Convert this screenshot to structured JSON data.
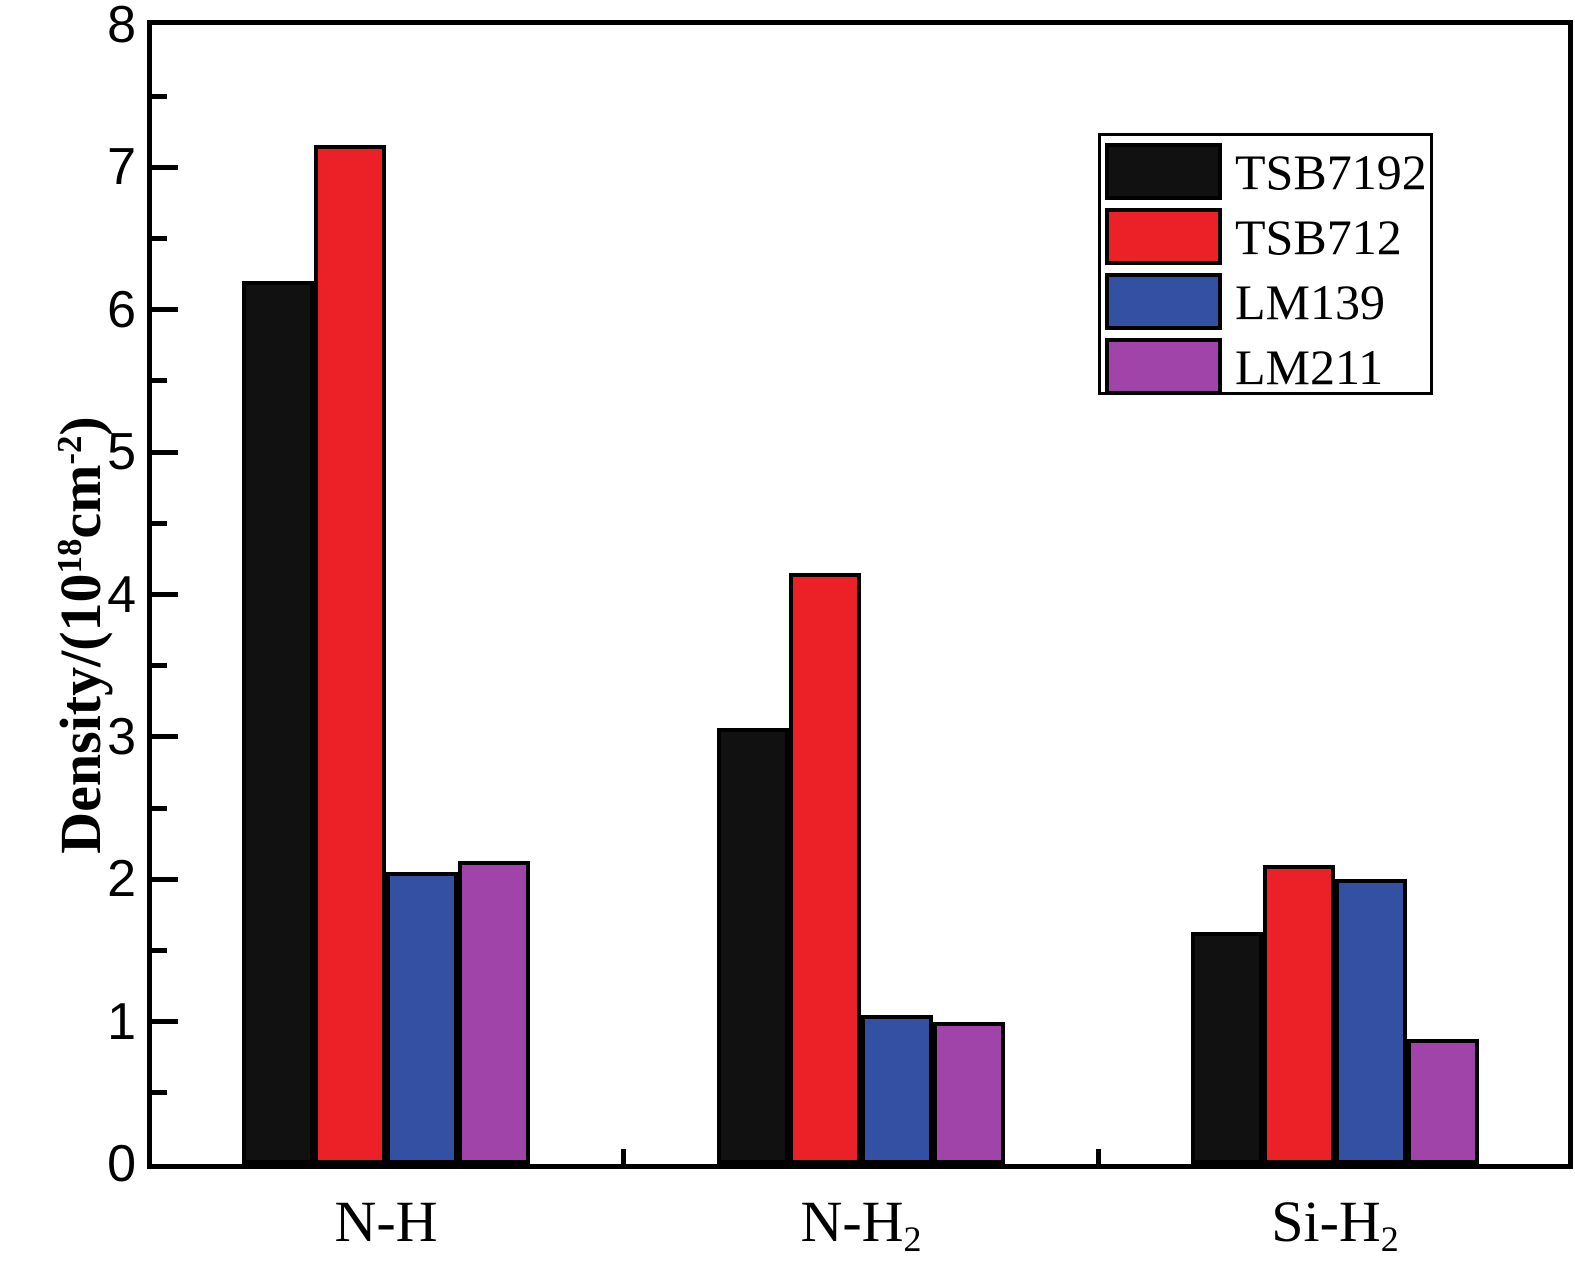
{
  "figure": {
    "background": "#ffffff",
    "frame_color": "#000000"
  },
  "y_axis": {
    "title_parts": {
      "prefix": "Density/(10",
      "sup1": "18",
      "mid": "cm",
      "sup2": "-2",
      "suffix": ")"
    },
    "tick_labels": [
      "0",
      "1",
      "2",
      "3",
      "4",
      "5",
      "6",
      "7",
      "8"
    ]
  },
  "chart_data": {
    "type": "bar",
    "title": "",
    "xlabel": "",
    "ylabel": "Density/(10^18 cm^-2)",
    "ylim": [
      0,
      8
    ],
    "ytick_step": 1,
    "minor_ytick_step": 0.5,
    "grid": false,
    "legend_position": "top-right",
    "categories": [
      "N-H",
      "N-H2",
      "Si-H2"
    ],
    "categories_rich": [
      {
        "base": "N-H",
        "sub": ""
      },
      {
        "base": "N-H",
        "sub": "2"
      },
      {
        "base": "Si-H",
        "sub": "2"
      }
    ],
    "series": [
      {
        "name": "TSB7192",
        "color": "#111111",
        "values": [
          6.2,
          3.06,
          1.63
        ]
      },
      {
        "name": "TSB712",
        "color": "#ec2127",
        "values": [
          7.16,
          4.15,
          2.1
        ]
      },
      {
        "name": "LM139",
        "color": "#3450a3",
        "values": [
          2.05,
          1.05,
          2.0
        ]
      },
      {
        "name": "LM211",
        "color": "#a144a9",
        "values": [
          2.13,
          1.0,
          0.88
        ]
      }
    ]
  }
}
